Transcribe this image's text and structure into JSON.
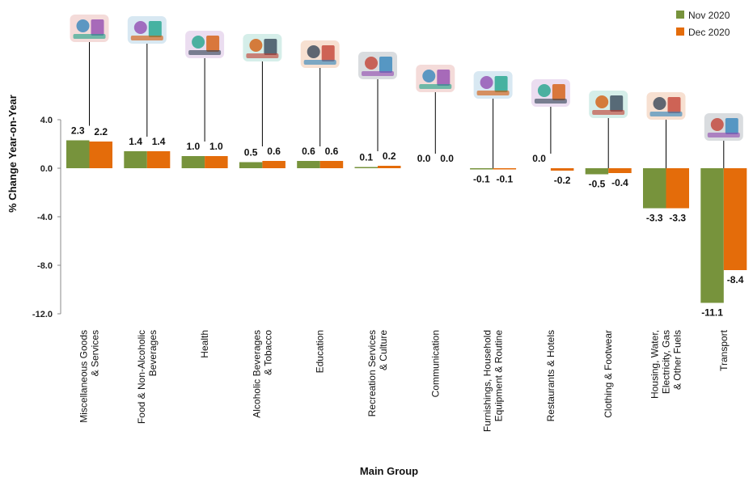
{
  "chart_data": {
    "type": "bar",
    "xlabel": "Main Group",
    "ylabel": "% Change Year-on-Year",
    "ylim": [
      -12,
      4
    ],
    "yticks": [
      "4.0",
      "0.0",
      "-4.0",
      "-8.0",
      "-12.0"
    ],
    "grid": false,
    "legend_position": "top-right",
    "categories": [
      [
        "Miscellaneous Goods",
        "& Services"
      ],
      [
        "Food & Non-Alcoholic",
        "Beverages"
      ],
      [
        "Health"
      ],
      [
        "Alcoholic Beverages",
        "& Tobacco"
      ],
      [
        "Education"
      ],
      [
        "Recreation Services",
        "& Culture"
      ],
      [
        "Communication"
      ],
      [
        "Furnishings, Household",
        "Equipment  & Routine"
      ],
      [
        "Restaurants & Hotels"
      ],
      [
        "Clothing & Footwear"
      ],
      [
        "Housing, Water,",
        "Electricity, Gas",
        "& Other Fuels"
      ],
      [
        "Transport"
      ]
    ],
    "icons": [
      "shopping-goods-icon",
      "food-basket-icon",
      "hospital-icon",
      "bottles-icon",
      "books-icon",
      "music-instruments-icon",
      "delivery-scooter-icon",
      "furniture-icon",
      "hotel-building-icon",
      "clothing-icon",
      "house-utilities-icon",
      "vehicles-icon"
    ],
    "series": [
      {
        "name": "Nov 2020",
        "color": "#77933C",
        "values": [
          2.3,
          1.4,
          1.0,
          0.5,
          0.6,
          0.1,
          0.0,
          -0.1,
          0.0,
          -0.5,
          -3.3,
          -11.1
        ],
        "labels": [
          "2.3",
          "1.4",
          "1.0",
          "0.5",
          "0.6",
          "0.1",
          "0.0",
          "-0.1",
          "0.0",
          "-0.5",
          "-3.3",
          "-11.1"
        ]
      },
      {
        "name": "Dec 2020",
        "color": "#E46C0A",
        "values": [
          2.2,
          1.4,
          1.0,
          0.6,
          0.6,
          0.2,
          0.0,
          -0.1,
          -0.2,
          -0.4,
          -3.3,
          -8.4
        ],
        "labels": [
          "2.2",
          "1.4",
          "1.0",
          "0.6",
          "0.6",
          "0.2",
          "0.0",
          "-0.1",
          "-0.2",
          "-0.4",
          "-3.3",
          "-8.4"
        ]
      }
    ]
  }
}
